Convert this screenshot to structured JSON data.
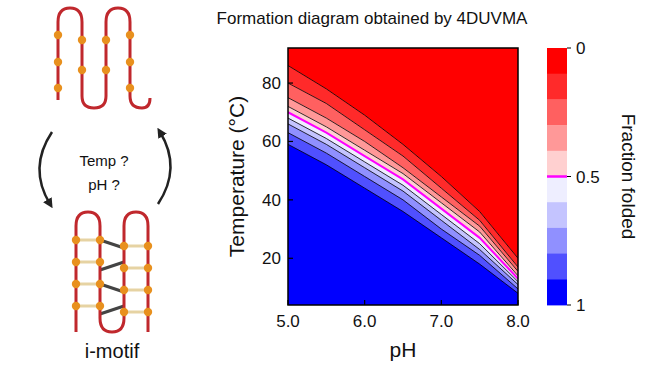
{
  "chart_data": {
    "type": "contour",
    "title": "Formation diagram obtained by 4DUVMA",
    "xlabel": "pH",
    "ylabel": "Temperature (°C)",
    "x": [
      5,
      5.5,
      6,
      6.5,
      7,
      7.5,
      8
    ],
    "xlim": [
      5,
      8
    ],
    "xticks": [
      {
        "value": 5,
        "label": "5.0"
      },
      {
        "value": 6,
        "label": "6.0"
      },
      {
        "value": 7,
        "label": "7.0"
      },
      {
        "value": 8,
        "label": "8.0"
      }
    ],
    "ylim": [
      4,
      92
    ],
    "yticks": [
      20,
      40,
      60,
      80
    ],
    "contours": [
      {
        "level": 0.1,
        "color": "#000000",
        "values": [
          86,
          78,
          69,
          59,
          48,
          36,
          20
        ]
      },
      {
        "level": 0.2,
        "color": "#000000",
        "values": [
          80,
          73,
          64,
          55,
          44,
          33,
          17
        ]
      },
      {
        "level": 0.3,
        "color": "#000000",
        "values": [
          75,
          68,
          60,
          51,
          41,
          31,
          15.5
        ]
      },
      {
        "level": 0.4,
        "color": "#000000",
        "values": [
          72,
          65,
          57,
          49,
          39,
          29,
          14
        ]
      },
      {
        "level": 0.5,
        "color": "#ff00ff",
        "values": [
          70,
          63,
          55,
          47,
          37,
          27,
          13
        ]
      },
      {
        "level": 0.6,
        "color": "#000000",
        "values": [
          68,
          61,
          53,
          45,
          35,
          25,
          12
        ]
      },
      {
        "level": 0.7,
        "color": "#000000",
        "values": [
          66,
          59,
          51,
          43,
          33,
          23,
          11
        ]
      },
      {
        "level": 0.8,
        "color": "#000000",
        "values": [
          63,
          56,
          48,
          40,
          30,
          21,
          9.5
        ]
      },
      {
        "level": 0.9,
        "color": "#000000",
        "values": [
          59,
          52,
          44,
          36,
          27,
          18,
          8
        ]
      }
    ],
    "colorbar": {
      "title": "Fraction folded",
      "range": [
        0,
        1
      ],
      "ticks": [
        0,
        0.5,
        1
      ],
      "levels": [
        0,
        0.1,
        0.2,
        0.3,
        0.4,
        0.5,
        0.6,
        0.7,
        0.8,
        0.9,
        1
      ],
      "colors": [
        "#ff0000",
        "#ff2a2a",
        "#ff6060",
        "#ff9898",
        "#ffd0d0",
        "#eeeeff",
        "#c4c4ff",
        "#9090ff",
        "#5050ff",
        "#0000ff"
      ]
    }
  },
  "diagram": {
    "labels": [
      "Temp ?",
      "pH ?"
    ],
    "caption": "i-motif"
  }
}
